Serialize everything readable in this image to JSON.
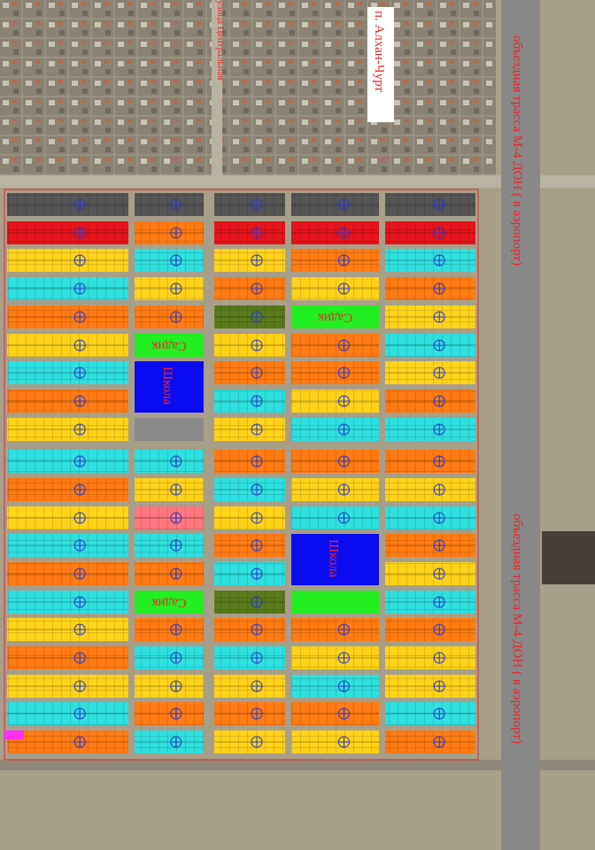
{
  "labels": {
    "village": "п. Алхан-Чурт",
    "street": "улица Центральная",
    "road_top": "объездная трасса М-4 ДОН ( в аэропорт)",
    "road_bottom": "объездная трасса М-4 ДОН ( в аэропорт)",
    "kindergartens": [
      "Садик",
      "Садик",
      "Садик"
    ],
    "schools": [
      "Школа",
      "Школа"
    ]
  }
}
